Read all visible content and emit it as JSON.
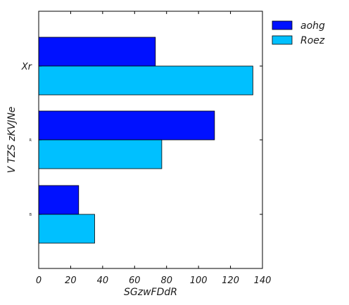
{
  "chart_data": {
    "type": "bar",
    "orientation": "horizontal",
    "title": "",
    "xlabel": "SGzwFDdR",
    "ylabel": "V TZS zKVJNe",
    "categories": [
      "Xr",
      "R",
      "B"
    ],
    "xlim": [
      0,
      140
    ],
    "xticks": [
      0,
      20,
      40,
      60,
      80,
      100,
      120,
      140
    ],
    "xtick_labels": [
      "0",
      "20",
      "40",
      "60",
      "80",
      "100",
      "120",
      "140"
    ],
    "grid": false,
    "legend_position": "outside-top-right",
    "series": [
      {
        "name": "aohg",
        "color": "#0011ff",
        "values": [
          73,
          110,
          25
        ]
      },
      {
        "name": "Roez",
        "color": "#00c0ff",
        "values": [
          134,
          77,
          35
        ]
      }
    ]
  }
}
